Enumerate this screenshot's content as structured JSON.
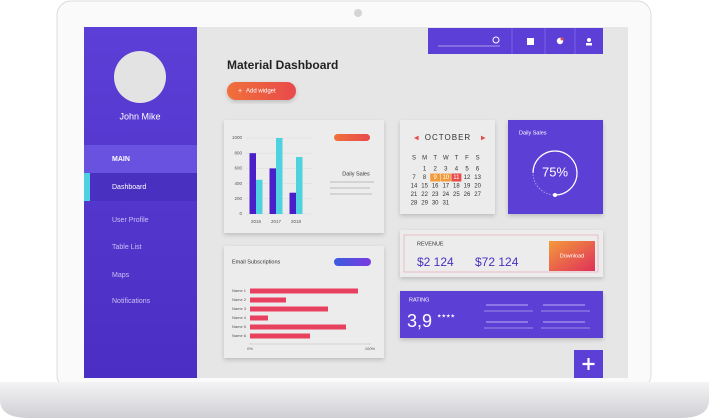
{
  "sidebar": {
    "user_name": "John Mike",
    "section": "MAIN",
    "items": [
      "Dashboard",
      "User Profile",
      "Table List",
      "Maps",
      "Notifications"
    ],
    "active": 0
  },
  "header": {
    "title": "Material Dashboard",
    "button": "Add widget"
  },
  "bar_chart": {
    "type": "bar",
    "title": "Daily Sales",
    "categories": [
      "2016",
      "2017",
      "2018"
    ],
    "series": [
      {
        "color": "#4a1fc9",
        "values": [
          800,
          600,
          280
        ]
      },
      {
        "color": "#4fd2e0",
        "values": [
          450,
          1000,
          750
        ]
      }
    ],
    "ylim": [
      0,
      1000
    ],
    "yticks": [
      0,
      200,
      400,
      600,
      800,
      1000
    ]
  },
  "calendar": {
    "month": "OCTOBER",
    "weekdays": [
      "S",
      "M",
      "T",
      "W",
      "T",
      "F",
      "S"
    ],
    "first_weekday": 1,
    "dates": [
      1,
      2,
      3,
      4,
      5,
      6,
      7,
      8,
      9,
      10,
      11,
      12,
      13,
      14,
      15,
      16,
      17,
      18,
      19,
      20,
      21,
      22,
      23,
      24,
      25,
      26,
      27,
      28,
      29,
      30,
      31
    ],
    "selected": [
      9,
      10
    ],
    "today": 11
  },
  "gauge": {
    "title": "Daily Sales",
    "value": 75,
    "value_label": "75%"
  },
  "hbar_chart": {
    "type": "hbar",
    "title": "Email Subscriptions",
    "categories": [
      "Name 1",
      "Name 2",
      "Name 3",
      "Name 4",
      "Name 5",
      "Name 6"
    ],
    "values": [
      90,
      30,
      65,
      15,
      80,
      50
    ],
    "color": "#e8405f",
    "xlim": [
      0,
      100
    ],
    "xticks": [
      {
        "value": 0,
        "label": "0%"
      },
      {
        "value": 100,
        "label": "100%"
      }
    ]
  },
  "revenue": {
    "title": "REVENUE",
    "values": [
      "$2 124",
      "$72 124"
    ],
    "button": "Download"
  },
  "rating": {
    "title": "RATING",
    "value": "3,9",
    "stars": 4
  }
}
